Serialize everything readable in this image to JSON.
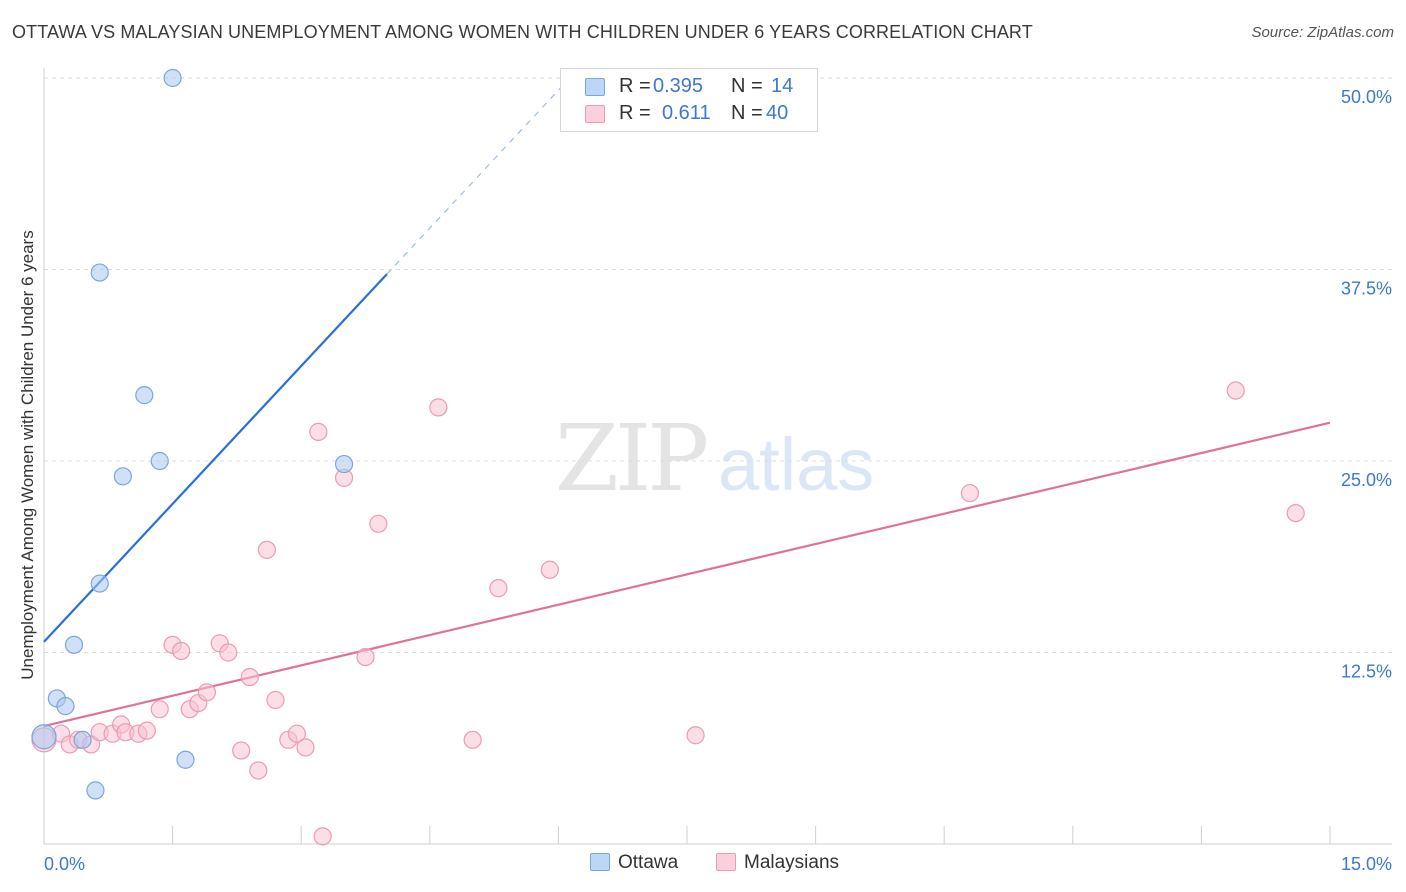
{
  "title": "OTTAWA VS MALAYSIAN UNEMPLOYMENT AMONG WOMEN WITH CHILDREN UNDER 6 YEARS CORRELATION CHART",
  "source": "Source: ZipAtlas.com",
  "watermark": {
    "zip": "ZIP",
    "atlas": "atlas"
  },
  "legend": {
    "r_label": "R =",
    "n_label": "N =",
    "ottawa": {
      "r": "0.395",
      "n": "14"
    },
    "malaysians": {
      "r": "0.611",
      "n": "40"
    }
  },
  "chart_data": {
    "type": "scatter",
    "title": "OTTAWA VS MALAYSIAN UNEMPLOYMENT AMONG WOMEN WITH CHILDREN UNDER 6 YEARS CORRELATION CHART",
    "xlabel": "",
    "ylabel": "Unemployment Among Women with Children Under 6 years",
    "xlim": [
      0,
      15
    ],
    "ylim": [
      0,
      50
    ],
    "x_tick_labels": [
      "0.0%",
      "15.0%"
    ],
    "y_tick_labels": [
      "12.5%",
      "25.0%",
      "37.5%",
      "50.0%"
    ],
    "y_ticks": [
      12.5,
      25,
      37.5,
      50
    ],
    "grid": true,
    "series": [
      {
        "name": "Ottawa",
        "color": "#a9c8f0",
        "stroke": "#7ba6dc",
        "line_color": "#2a6fd6",
        "trend": {
          "x0": 0,
          "y0": 13.2,
          "x1": 4.0,
          "y1": 37.2,
          "dash_to_x": 6.1
        },
        "points": [
          [
            0.0,
            7.0
          ],
          [
            0.15,
            9.5
          ],
          [
            0.25,
            9.0
          ],
          [
            0.35,
            13.0
          ],
          [
            0.45,
            6.8
          ],
          [
            0.6,
            3.5
          ],
          [
            0.65,
            17.0
          ],
          [
            0.65,
            37.3
          ],
          [
            0.92,
            24.0
          ],
          [
            1.17,
            29.3
          ],
          [
            1.35,
            25.0
          ],
          [
            1.5,
            50.0
          ],
          [
            1.65,
            5.5
          ],
          [
            3.5,
            24.8
          ]
        ]
      },
      {
        "name": "Malaysians",
        "color": "#f7c3d2",
        "stroke": "#eb9bb4",
        "line_color": "#e0729a",
        "trend": {
          "x0": 0,
          "y0": 7.7,
          "x1": 15.0,
          "y1": 27.5
        },
        "points": [
          [
            0.0,
            6.8
          ],
          [
            0.2,
            7.2
          ],
          [
            0.3,
            6.5
          ],
          [
            0.4,
            6.8
          ],
          [
            0.55,
            6.5
          ],
          [
            0.65,
            7.3
          ],
          [
            0.8,
            7.2
          ],
          [
            0.9,
            7.8
          ],
          [
            0.95,
            7.3
          ],
          [
            1.1,
            7.2
          ],
          [
            1.2,
            7.4
          ],
          [
            1.35,
            8.8
          ],
          [
            1.5,
            13.0
          ],
          [
            1.6,
            12.6
          ],
          [
            1.7,
            8.8
          ],
          [
            1.8,
            9.2
          ],
          [
            1.9,
            9.9
          ],
          [
            2.05,
            13.1
          ],
          [
            2.15,
            12.5
          ],
          [
            2.3,
            6.1
          ],
          [
            2.4,
            10.9
          ],
          [
            2.5,
            4.8
          ],
          [
            2.6,
            19.2
          ],
          [
            2.7,
            9.4
          ],
          [
            2.85,
            6.8
          ],
          [
            2.95,
            7.2
          ],
          [
            3.05,
            6.3
          ],
          [
            3.2,
            26.9
          ],
          [
            3.25,
            0.5
          ],
          [
            3.5,
            23.9
          ],
          [
            3.75,
            12.2
          ],
          [
            3.9,
            20.9
          ],
          [
            4.6,
            28.5
          ],
          [
            5.0,
            6.8
          ],
          [
            5.3,
            16.7
          ],
          [
            5.9,
            17.9
          ],
          [
            7.6,
            7.1
          ],
          [
            10.8,
            22.9
          ],
          [
            13.9,
            29.6
          ],
          [
            14.6,
            21.6
          ]
        ]
      }
    ]
  },
  "bottom_legend": [
    "Ottawa",
    "Malaysians"
  ]
}
